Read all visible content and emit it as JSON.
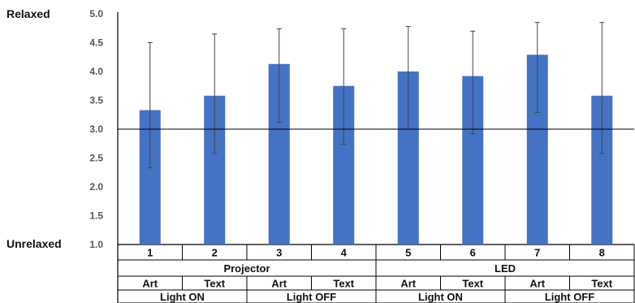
{
  "chart_data": {
    "type": "bar",
    "title": "",
    "xlabel": "",
    "ylabel": "",
    "ylim": [
      1.0,
      5.0
    ],
    "yticks": [
      "1.0",
      "1.5",
      "2.0",
      "2.5",
      "3.0",
      "3.5",
      "4.0",
      "4.5",
      "5.0"
    ],
    "y_top_label": "Relaxed",
    "y_bottom_label": "Unrelaxed",
    "reference_line": 3.0,
    "bar_color": "#4472C4",
    "grid": false,
    "categories": [
      "1",
      "2",
      "3",
      "4",
      "5",
      "6",
      "7",
      "8"
    ],
    "values": [
      3.33,
      3.58,
      4.13,
      3.75,
      4.0,
      3.92,
      4.29,
      3.58
    ],
    "error_low": [
      2.33,
      2.58,
      3.12,
      2.74,
      3.0,
      2.92,
      3.29,
      2.58
    ],
    "error_high": [
      4.5,
      4.65,
      4.74,
      4.74,
      4.78,
      4.7,
      4.85,
      4.85
    ],
    "device_groups": [
      "Projector",
      "LED"
    ],
    "content_labels": [
      "Art",
      "Text",
      "Art",
      "Text",
      "Art",
      "Text",
      "Art",
      "Text"
    ],
    "light_groups": [
      "Light ON",
      "Light OFF",
      "Light ON",
      "Light OFF"
    ]
  }
}
